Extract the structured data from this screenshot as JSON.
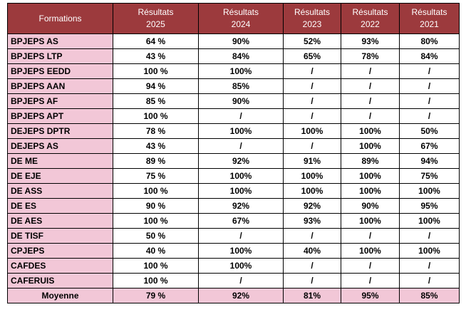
{
  "table": {
    "header": [
      "Formations",
      "Résultats\n2025",
      "Résultats\n2024",
      "Résultats\n2023",
      "Résultats\n2022",
      "Résultats\n2021"
    ],
    "rows": [
      [
        "BPJEPS AS",
        "64 %",
        "90%",
        "52%",
        "93%",
        "80%"
      ],
      [
        "BPJEPS LTP",
        "43 %",
        "84%",
        "65%",
        "78%",
        "84%"
      ],
      [
        "BPJEPS EEDD",
        "100 %",
        "100%",
        "/",
        "/",
        "/"
      ],
      [
        "BPJEPS AAN",
        "94 %",
        "85%",
        "/",
        "/",
        "/"
      ],
      [
        "BPJEPS AF",
        "85 %",
        "90%",
        "/",
        "/",
        "/"
      ],
      [
        "BPJEPS APT",
        "100 %",
        "/",
        "/",
        "/",
        "/"
      ],
      [
        "DEJEPS DPTR",
        "78 %",
        "100%",
        "100%",
        "100%",
        "50%"
      ],
      [
        "DEJEPS AS",
        "43 %",
        "/",
        "/",
        "100%",
        "67%"
      ],
      [
        "DE ME",
        "89 %",
        "92%",
        "91%",
        "89%",
        "94%"
      ],
      [
        "DE EJE",
        "75 %",
        "100%",
        "100%",
        "100%",
        "75%"
      ],
      [
        "DE ASS",
        "100 %",
        "100%",
        "100%",
        "100%",
        "100%"
      ],
      [
        "DE ES",
        "90 %",
        "92%",
        "92%",
        "90%",
        "95%"
      ],
      [
        "DE AES",
        "100 %",
        "67%",
        "93%",
        "100%",
        "100%"
      ],
      [
        "DE TISF",
        "50 %",
        "/",
        "/",
        "/",
        "/"
      ],
      [
        "CPJEPS",
        "40 %",
        "100%",
        "40%",
        "100%",
        "100%"
      ],
      [
        "CAFDES",
        "100 %",
        "100%",
        "/",
        "/",
        "/"
      ],
      [
        "CAFERUIS",
        "100 %",
        "/",
        "/",
        "/",
        "/"
      ]
    ],
    "footer": [
      "Moyenne",
      "79 %",
      "92%",
      "81%",
      "95%",
      "85%"
    ]
  }
}
